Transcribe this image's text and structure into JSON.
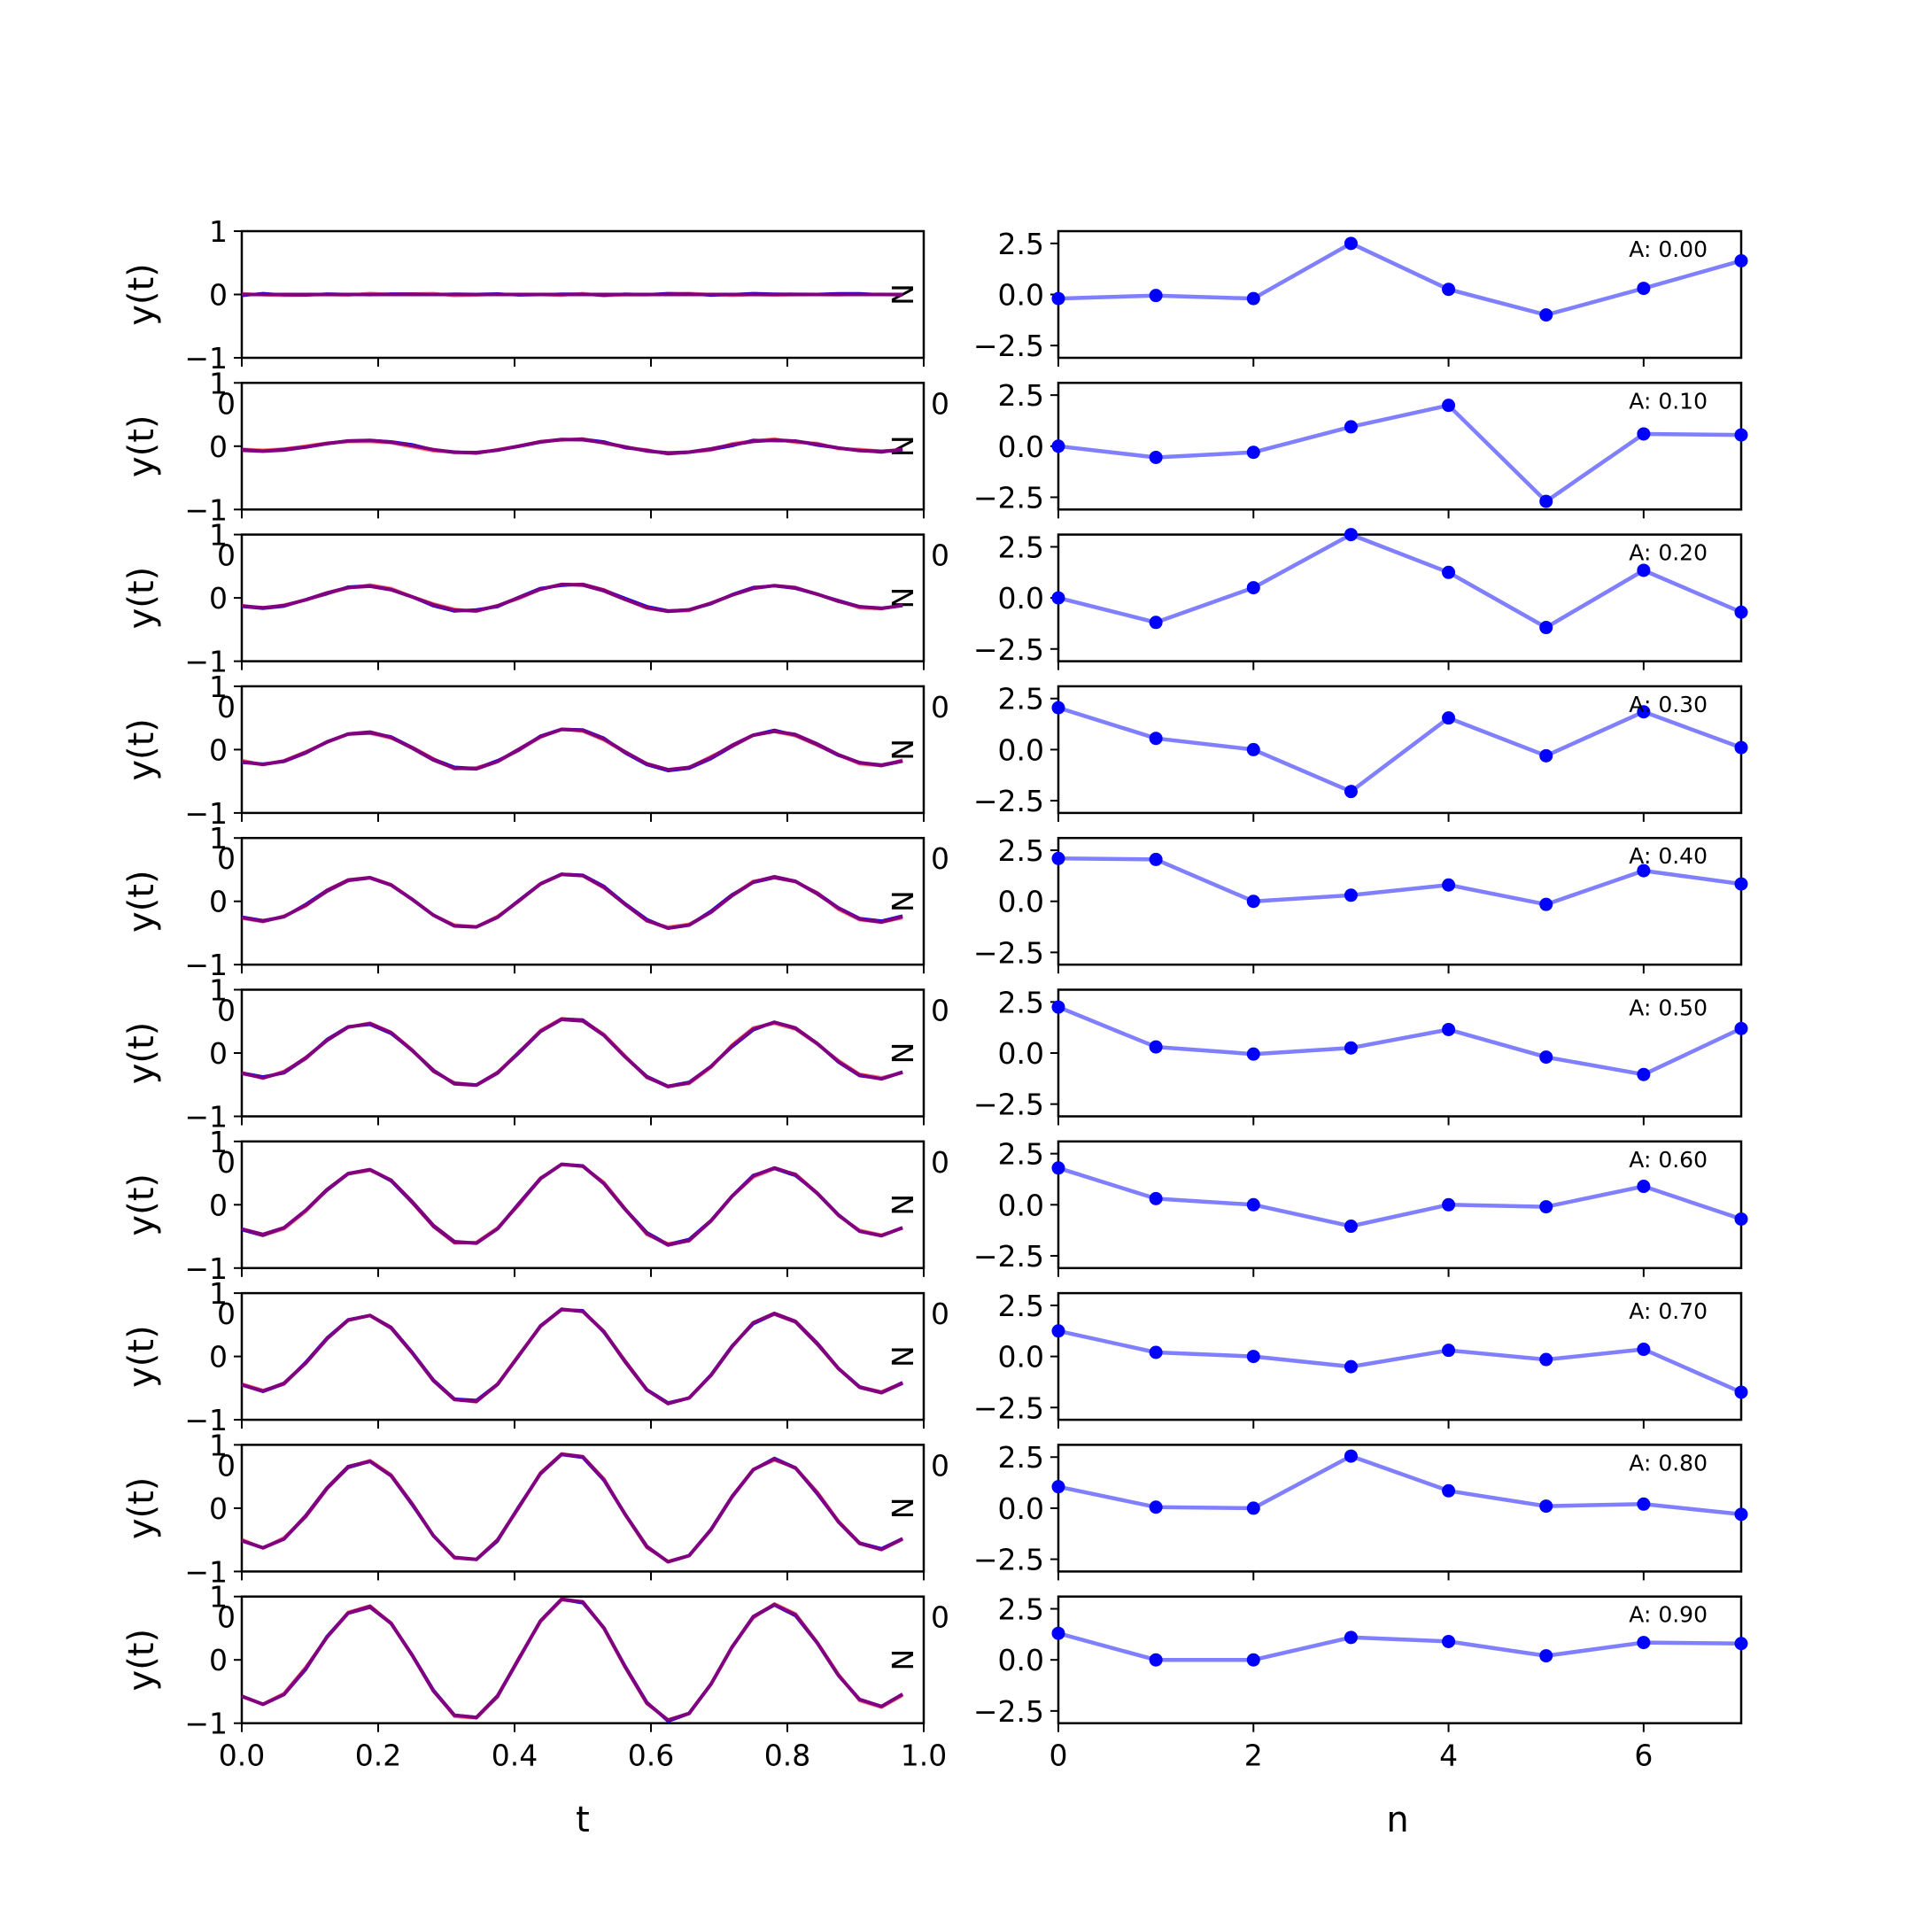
{
  "chart_data": [
    {
      "type": "line",
      "panel": "left",
      "xlabel": "t",
      "ylabel": "y(t)",
      "xlim": [
        0,
        1
      ],
      "ylim": [
        -1,
        1
      ],
      "yticks": [
        "1",
        "0",
        "−1"
      ],
      "xticks": [
        "0.0",
        "0.2",
        "0.4",
        "0.6",
        "0.8",
        "1.0"
      ],
      "overlap_text": "0",
      "edge_label": "N",
      "colors": [
        "#0000ff",
        "#ff0000",
        "#800080"
      ],
      "t": [
        0.0,
        0.031,
        0.062,
        0.094,
        0.125,
        0.156,
        0.188,
        0.219,
        0.25,
        0.281,
        0.312,
        0.344,
        0.375,
        0.406,
        0.438,
        0.469,
        0.5,
        0.531,
        0.562,
        0.594,
        0.625,
        0.656,
        0.688,
        0.719,
        0.75,
        0.781,
        0.812,
        0.844,
        0.875,
        0.906,
        0.938,
        0.969
      ],
      "amplitudes": [
        0.0,
        0.1,
        0.2,
        0.3,
        0.4,
        0.5,
        0.6,
        0.7,
        0.8,
        0.9
      ]
    },
    {
      "type": "line",
      "panel": "right",
      "xlabel": "n",
      "xlim": [
        0,
        7
      ],
      "ylim": [
        -3.1,
        3.1
      ],
      "yticks": [
        "2.5",
        "0.0",
        "−2.5"
      ],
      "xticks": [
        "0",
        "2",
        "4",
        "6"
      ],
      "line_color": "#0000ff",
      "n": [
        0,
        1,
        2,
        3,
        4,
        5,
        6,
        7
      ],
      "rows": [
        {
          "annotation": "A: 0.00",
          "values": [
            -0.2,
            -0.05,
            -0.2,
            2.5,
            0.25,
            -1.0,
            0.3,
            1.65
          ]
        },
        {
          "annotation": "A: 0.10",
          "values": [
            0.0,
            -0.55,
            -0.3,
            0.95,
            2.0,
            -2.7,
            0.6,
            0.55
          ]
        },
        {
          "annotation": "A: 0.20",
          "values": [
            0.0,
            -1.2,
            0.5,
            3.1,
            1.25,
            -1.45,
            1.35,
            -0.7
          ]
        },
        {
          "annotation": "A: 0.30",
          "values": [
            2.05,
            0.55,
            0.0,
            -2.05,
            1.55,
            -0.3,
            1.85,
            0.1
          ]
        },
        {
          "annotation": "A: 0.40",
          "values": [
            2.1,
            2.05,
            0.0,
            0.3,
            0.8,
            -0.15,
            1.5,
            0.85
          ]
        },
        {
          "annotation": "A: 0.50",
          "values": [
            2.25,
            0.3,
            -0.05,
            0.25,
            1.15,
            -0.2,
            -1.05,
            1.2
          ]
        },
        {
          "annotation": "A: 0.60",
          "values": [
            1.8,
            0.3,
            0.0,
            -1.05,
            0.0,
            -0.1,
            0.9,
            -0.7
          ]
        },
        {
          "annotation": "A: 0.70",
          "values": [
            1.25,
            0.2,
            0.0,
            -0.5,
            0.3,
            -0.15,
            0.35,
            -1.75
          ]
        },
        {
          "annotation": "A: 0.80",
          "values": [
            1.05,
            0.05,
            0.0,
            2.55,
            0.85,
            0.1,
            0.2,
            -0.3
          ]
        },
        {
          "annotation": "A: 0.90",
          "values": [
            1.3,
            0.0,
            0.0,
            1.1,
            0.9,
            0.2,
            0.85,
            0.8
          ]
        }
      ]
    }
  ]
}
